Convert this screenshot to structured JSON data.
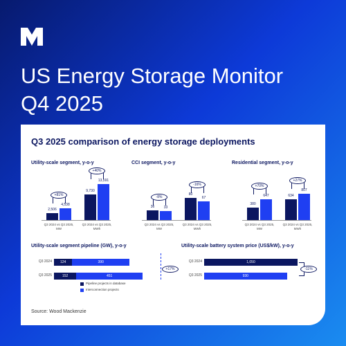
{
  "header": {
    "title": "US Energy Storage Monitor",
    "subtitle": "Q4 2025"
  },
  "card_title": "Q3 2025 comparison of energy storage deployments",
  "chart_data": [
    {
      "type": "bar",
      "title": "Utility-scale segment, y-o-y",
      "categories": [
        "Q3 2024 vs Q3 2025, MW",
        "Q3 2024 vs Q3 2025, MWh"
      ],
      "series": [
        {
          "color": "#0b1660",
          "values": [
            2506,
            9730
          ],
          "value_labels": [
            "2,506",
            "9,730"
          ]
        },
        {
          "color": "#1f3ff2",
          "values": [
            4538,
            13591
          ],
          "value_labels": [
            "4,538",
            "13,591"
          ]
        }
      ],
      "annotations": [
        "+81%",
        "+40%"
      ]
    },
    {
      "type": "bar",
      "title": "CCI segment, y-o-y",
      "categories": [
        "Q3 2024 vs Q3 2025, MW",
        "Q3 2024 vs Q3 2025, MWh"
      ],
      "series": [
        {
          "color": "#0b1660",
          "values": [
            36,
            80
          ]
        },
        {
          "color": "#1f3ff2",
          "values": [
            33,
            67
          ]
        }
      ],
      "annotations": [
        "-8%",
        "-16%"
      ]
    },
    {
      "type": "bar",
      "title": "Residential segment, y-o-y",
      "categories": [
        "Q3 2024 vs Q3 2025, MW",
        "Q3 2024 vs Q3 2025, MWh"
      ],
      "series": [
        {
          "color": "#0b1660",
          "values": [
            380,
            634
          ]
        },
        {
          "color": "#1f3ff2",
          "values": [
            647,
            807
          ]
        }
      ],
      "annotations": [
        "+70%",
        "+27%"
      ]
    },
    {
      "type": "hbar-stacked",
      "title": "Utility-scale segment pipeline (GW), y-o-y",
      "categories": [
        "Q3 2024",
        "Q3 2025"
      ],
      "series": [
        {
          "name": "Pipeline projects in database",
          "color": "#0b1660",
          "values": [
            124,
            152
          ]
        },
        {
          "name": "Interconnection projects",
          "color": "#1f3ff2",
          "values": [
            390,
            451
          ]
        }
      ],
      "annotations": [
        "+17%"
      ]
    },
    {
      "type": "hbar",
      "title": "Utility-scale battery system price (US$/kW), y-o-y",
      "categories": [
        "Q3 2024",
        "Q3 2025"
      ],
      "series": [
        {
          "colors": [
            "#0b1660",
            "#1f3ff2"
          ],
          "values": [
            1050,
            930
          ],
          "value_labels": [
            "1,050",
            "930"
          ]
        }
      ],
      "annotations": [
        "-11%"
      ]
    }
  ],
  "source": "Source: Wood Mackenzie"
}
